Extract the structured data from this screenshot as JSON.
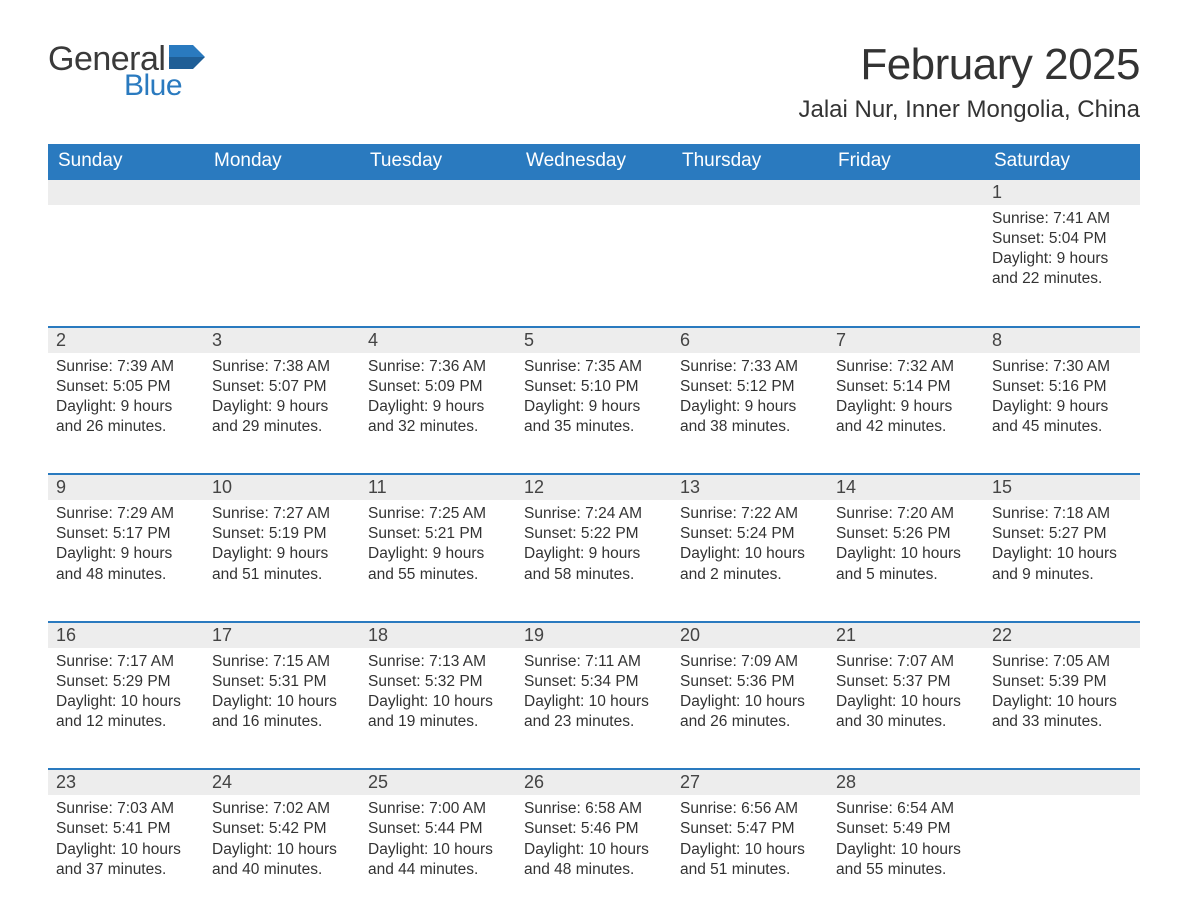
{
  "logo": {
    "general": "General",
    "blue": "Blue"
  },
  "title": "February 2025",
  "location": "Jalai Nur, Inner Mongolia, China",
  "colors": {
    "header_bg": "#2a7abf",
    "header_text": "#ffffff",
    "daynum_bg": "#ededed",
    "row_border": "#2a7abf",
    "text": "#333333",
    "logo_blue": "#2a7abf",
    "logo_gray": "#3a3a3a",
    "page_bg": "#ffffff"
  },
  "weekdays": [
    "Sunday",
    "Monday",
    "Tuesday",
    "Wednesday",
    "Thursday",
    "Friday",
    "Saturday"
  ],
  "weeks": [
    {
      "nums": [
        "",
        "",
        "",
        "",
        "",
        "",
        "1"
      ],
      "cells": [
        null,
        null,
        null,
        null,
        null,
        null,
        {
          "sunrise": "Sunrise: 7:41 AM",
          "sunset": "Sunset: 5:04 PM",
          "daylight": "Daylight: 9 hours and 22 minutes."
        }
      ]
    },
    {
      "nums": [
        "2",
        "3",
        "4",
        "5",
        "6",
        "7",
        "8"
      ],
      "cells": [
        {
          "sunrise": "Sunrise: 7:39 AM",
          "sunset": "Sunset: 5:05 PM",
          "daylight": "Daylight: 9 hours and 26 minutes."
        },
        {
          "sunrise": "Sunrise: 7:38 AM",
          "sunset": "Sunset: 5:07 PM",
          "daylight": "Daylight: 9 hours and 29 minutes."
        },
        {
          "sunrise": "Sunrise: 7:36 AM",
          "sunset": "Sunset: 5:09 PM",
          "daylight": "Daylight: 9 hours and 32 minutes."
        },
        {
          "sunrise": "Sunrise: 7:35 AM",
          "sunset": "Sunset: 5:10 PM",
          "daylight": "Daylight: 9 hours and 35 minutes."
        },
        {
          "sunrise": "Sunrise: 7:33 AM",
          "sunset": "Sunset: 5:12 PM",
          "daylight": "Daylight: 9 hours and 38 minutes."
        },
        {
          "sunrise": "Sunrise: 7:32 AM",
          "sunset": "Sunset: 5:14 PM",
          "daylight": "Daylight: 9 hours and 42 minutes."
        },
        {
          "sunrise": "Sunrise: 7:30 AM",
          "sunset": "Sunset: 5:16 PM",
          "daylight": "Daylight: 9 hours and 45 minutes."
        }
      ]
    },
    {
      "nums": [
        "9",
        "10",
        "11",
        "12",
        "13",
        "14",
        "15"
      ],
      "cells": [
        {
          "sunrise": "Sunrise: 7:29 AM",
          "sunset": "Sunset: 5:17 PM",
          "daylight": "Daylight: 9 hours and 48 minutes."
        },
        {
          "sunrise": "Sunrise: 7:27 AM",
          "sunset": "Sunset: 5:19 PM",
          "daylight": "Daylight: 9 hours and 51 minutes."
        },
        {
          "sunrise": "Sunrise: 7:25 AM",
          "sunset": "Sunset: 5:21 PM",
          "daylight": "Daylight: 9 hours and 55 minutes."
        },
        {
          "sunrise": "Sunrise: 7:24 AM",
          "sunset": "Sunset: 5:22 PM",
          "daylight": "Daylight: 9 hours and 58 minutes."
        },
        {
          "sunrise": "Sunrise: 7:22 AM",
          "sunset": "Sunset: 5:24 PM",
          "daylight": "Daylight: 10 hours and 2 minutes."
        },
        {
          "sunrise": "Sunrise: 7:20 AM",
          "sunset": "Sunset: 5:26 PM",
          "daylight": "Daylight: 10 hours and 5 minutes."
        },
        {
          "sunrise": "Sunrise: 7:18 AM",
          "sunset": "Sunset: 5:27 PM",
          "daylight": "Daylight: 10 hours and 9 minutes."
        }
      ]
    },
    {
      "nums": [
        "16",
        "17",
        "18",
        "19",
        "20",
        "21",
        "22"
      ],
      "cells": [
        {
          "sunrise": "Sunrise: 7:17 AM",
          "sunset": "Sunset: 5:29 PM",
          "daylight": "Daylight: 10 hours and 12 minutes."
        },
        {
          "sunrise": "Sunrise: 7:15 AM",
          "sunset": "Sunset: 5:31 PM",
          "daylight": "Daylight: 10 hours and 16 minutes."
        },
        {
          "sunrise": "Sunrise: 7:13 AM",
          "sunset": "Sunset: 5:32 PM",
          "daylight": "Daylight: 10 hours and 19 minutes."
        },
        {
          "sunrise": "Sunrise: 7:11 AM",
          "sunset": "Sunset: 5:34 PM",
          "daylight": "Daylight: 10 hours and 23 minutes."
        },
        {
          "sunrise": "Sunrise: 7:09 AM",
          "sunset": "Sunset: 5:36 PM",
          "daylight": "Daylight: 10 hours and 26 minutes."
        },
        {
          "sunrise": "Sunrise: 7:07 AM",
          "sunset": "Sunset: 5:37 PM",
          "daylight": "Daylight: 10 hours and 30 minutes."
        },
        {
          "sunrise": "Sunrise: 7:05 AM",
          "sunset": "Sunset: 5:39 PM",
          "daylight": "Daylight: 10 hours and 33 minutes."
        }
      ]
    },
    {
      "nums": [
        "23",
        "24",
        "25",
        "26",
        "27",
        "28",
        ""
      ],
      "cells": [
        {
          "sunrise": "Sunrise: 7:03 AM",
          "sunset": "Sunset: 5:41 PM",
          "daylight": "Daylight: 10 hours and 37 minutes."
        },
        {
          "sunrise": "Sunrise: 7:02 AM",
          "sunset": "Sunset: 5:42 PM",
          "daylight": "Daylight: 10 hours and 40 minutes."
        },
        {
          "sunrise": "Sunrise: 7:00 AM",
          "sunset": "Sunset: 5:44 PM",
          "daylight": "Daylight: 10 hours and 44 minutes."
        },
        {
          "sunrise": "Sunrise: 6:58 AM",
          "sunset": "Sunset: 5:46 PM",
          "daylight": "Daylight: 10 hours and 48 minutes."
        },
        {
          "sunrise": "Sunrise: 6:56 AM",
          "sunset": "Sunset: 5:47 PM",
          "daylight": "Daylight: 10 hours and 51 minutes."
        },
        {
          "sunrise": "Sunrise: 6:54 AM",
          "sunset": "Sunset: 5:49 PM",
          "daylight": "Daylight: 10 hours and 55 minutes."
        },
        null
      ]
    }
  ]
}
